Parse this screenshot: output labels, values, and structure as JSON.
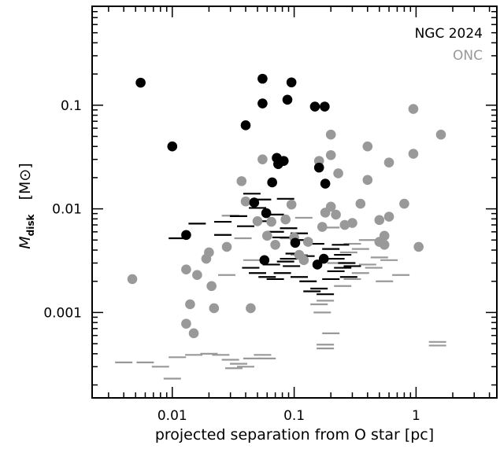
{
  "chart_data": {
    "type": "scatter",
    "xlabel": "projected separation from O star [pc]",
    "ylabel_main": "M",
    "ylabel_sub": "disk",
    "ylabel_unit": "[M⊙]",
    "xscale": "log",
    "yscale": "log",
    "xlim": [
      0.0022,
      4.6
    ],
    "ylim": [
      0.00015,
      0.9
    ],
    "xticks": [
      {
        "value": 0.01,
        "label": "0.01"
      },
      {
        "value": 0.1,
        "label": "0.1"
      },
      {
        "value": 1,
        "label": "1"
      }
    ],
    "yticks": [
      {
        "value": 0.001,
        "label": "0.001"
      },
      {
        "value": 0.01,
        "label": "0.01"
      },
      {
        "value": 0.1,
        "label": "0.1"
      }
    ],
    "legend": [
      {
        "name": "NGC 2024",
        "color": "#000000"
      },
      {
        "name": "ONC",
        "color": "#999999"
      }
    ],
    "legend_position": "top-right",
    "grid": false,
    "series": [
      {
        "name": "NGC 2024",
        "color": "#000000",
        "detections": [
          [
            0.0055,
            0.165
          ],
          [
            0.01,
            0.04
          ],
          [
            0.013,
            0.0056
          ],
          [
            0.055,
            0.18
          ],
          [
            0.055,
            0.104
          ],
          [
            0.088,
            0.113
          ],
          [
            0.095,
            0.166
          ],
          [
            0.04,
            0.064
          ],
          [
            0.148,
            0.097
          ],
          [
            0.178,
            0.097
          ],
          [
            0.072,
            0.031
          ],
          [
            0.074,
            0.027
          ],
          [
            0.082,
            0.029
          ],
          [
            0.16,
            0.025
          ],
          [
            0.066,
            0.018
          ],
          [
            0.18,
            0.0175
          ],
          [
            0.047,
            0.0115
          ],
          [
            0.059,
            0.0091
          ],
          [
            0.102,
            0.0047
          ],
          [
            0.057,
            0.0032
          ],
          [
            0.175,
            0.0033
          ],
          [
            0.155,
            0.0029
          ]
        ],
        "upper_limits": [
          [
            0.011,
            0.0052
          ],
          [
            0.016,
            0.0072
          ],
          [
            0.026,
            0.0075
          ],
          [
            0.026,
            0.0056
          ],
          [
            0.035,
            0.0085
          ],
          [
            0.04,
            0.0068
          ],
          [
            0.045,
            0.014
          ],
          [
            0.05,
            0.0102
          ],
          [
            0.055,
            0.0123
          ],
          [
            0.06,
            0.0076
          ],
          [
            0.07,
            0.006
          ],
          [
            0.085,
            0.0125
          ],
          [
            0.07,
            0.0088
          ],
          [
            0.078,
            0.0053
          ],
          [
            0.09,
            0.0065
          ],
          [
            0.11,
            0.0058
          ],
          [
            0.12,
            0.005
          ],
          [
            0.15,
            0.0046
          ],
          [
            0.2,
            0.0041
          ],
          [
            0.25,
            0.0036
          ],
          [
            0.044,
            0.0027
          ],
          [
            0.05,
            0.0024
          ],
          [
            0.06,
            0.0022
          ],
          [
            0.07,
            0.0021
          ],
          [
            0.08,
            0.0024
          ],
          [
            0.095,
            0.0028
          ],
          [
            0.11,
            0.0022
          ],
          [
            0.13,
            0.002
          ],
          [
            0.14,
            0.0016
          ],
          [
            0.16,
            0.0017
          ],
          [
            0.18,
            0.0015
          ],
          [
            0.2,
            0.0021
          ],
          [
            0.22,
            0.0025
          ],
          [
            0.25,
            0.0027
          ],
          [
            0.28,
            0.0022
          ],
          [
            0.1,
            0.0037
          ],
          [
            0.09,
            0.0033
          ],
          [
            0.125,
            0.0035
          ],
          [
            0.065,
            0.0029
          ],
          [
            0.085,
            0.0031
          ],
          [
            0.22,
            0.0033
          ],
          [
            0.27,
            0.003
          ],
          [
            0.24,
            0.0045
          ],
          [
            0.3,
            0.0028
          ]
        ]
      },
      {
        "name": "ONC",
        "color": "#999999",
        "detections": [
          [
            0.0047,
            0.0021
          ],
          [
            0.013,
            0.0026
          ],
          [
            0.014,
            0.0012
          ],
          [
            0.015,
            0.00063
          ],
          [
            0.016,
            0.0023
          ],
          [
            0.013,
            0.00078
          ],
          [
            0.019,
            0.0033
          ],
          [
            0.02,
            0.0038
          ],
          [
            0.021,
            0.0018
          ],
          [
            0.022,
            0.0011
          ],
          [
            0.028,
            0.0043
          ],
          [
            0.037,
            0.0185
          ],
          [
            0.04,
            0.0118
          ],
          [
            0.044,
            0.0011
          ],
          [
            0.05,
            0.0076
          ],
          [
            0.055,
            0.03
          ],
          [
            0.06,
            0.0055
          ],
          [
            0.065,
            0.0075
          ],
          [
            0.07,
            0.0045
          ],
          [
            0.085,
            0.0079
          ],
          [
            0.095,
            0.011
          ],
          [
            0.1,
            0.0053
          ],
          [
            0.11,
            0.0036
          ],
          [
            0.12,
            0.0032
          ],
          [
            0.13,
            0.0048
          ],
          [
            0.16,
            0.029
          ],
          [
            0.17,
            0.0067
          ],
          [
            0.18,
            0.0092
          ],
          [
            0.2,
            0.052
          ],
          [
            0.2,
            0.033
          ],
          [
            0.2,
            0.0105
          ],
          [
            0.22,
            0.0088
          ],
          [
            0.23,
            0.022
          ],
          [
            0.26,
            0.007
          ],
          [
            0.3,
            0.0073
          ],
          [
            0.35,
            0.0112
          ],
          [
            0.4,
            0.04
          ],
          [
            0.4,
            0.019
          ],
          [
            0.5,
            0.0078
          ],
          [
            0.5,
            0.0048
          ],
          [
            0.55,
            0.0055
          ],
          [
            0.55,
            0.0045
          ],
          [
            0.6,
            0.0084
          ],
          [
            0.6,
            0.028
          ],
          [
            0.8,
            0.0112
          ],
          [
            0.95,
            0.092
          ],
          [
            0.95,
            0.034
          ],
          [
            1.05,
            0.0043
          ],
          [
            1.6,
            0.052
          ]
        ],
        "upper_limits": [
          [
            0.004,
            0.00033
          ],
          [
            0.006,
            0.00033
          ],
          [
            0.008,
            0.0003
          ],
          [
            0.01,
            0.00023
          ],
          [
            0.011,
            0.00037
          ],
          [
            0.015,
            0.00039
          ],
          [
            0.02,
            0.0004
          ],
          [
            0.025,
            0.00039
          ],
          [
            0.03,
            0.00035
          ],
          [
            0.035,
            0.00032
          ],
          [
            0.04,
            0.0003
          ],
          [
            0.045,
            0.00036
          ],
          [
            0.055,
            0.00039
          ],
          [
            0.06,
            0.00036
          ],
          [
            0.032,
            0.00029
          ],
          [
            0.028,
            0.0023
          ],
          [
            0.03,
            0.0086
          ],
          [
            0.038,
            0.0052
          ],
          [
            0.045,
            0.0032
          ],
          [
            0.07,
            0.006
          ],
          [
            0.09,
            0.0052
          ],
          [
            0.12,
            0.0082
          ],
          [
            0.11,
            0.0036
          ],
          [
            0.2,
            0.0066
          ],
          [
            0.22,
            0.003
          ],
          [
            0.25,
            0.0018
          ],
          [
            0.3,
            0.0021
          ],
          [
            0.35,
            0.0024
          ],
          [
            0.4,
            0.0029
          ],
          [
            0.45,
            0.0027
          ],
          [
            0.5,
            0.0034
          ],
          [
            0.55,
            0.002
          ],
          [
            0.75,
            0.0023
          ],
          [
            0.18,
            0.0013
          ],
          [
            0.16,
            0.0012
          ],
          [
            0.17,
            0.001
          ],
          [
            0.2,
            0.00063
          ],
          [
            0.18,
            0.00049
          ],
          [
            0.18,
            0.00045
          ],
          [
            1.5,
            0.00052
          ],
          [
            1.5,
            0.00048
          ],
          [
            0.4,
            0.005
          ],
          [
            0.35,
            0.0041
          ],
          [
            0.28,
            0.0038
          ],
          [
            0.3,
            0.0046
          ],
          [
            0.6,
            0.0032
          ]
        ]
      }
    ]
  }
}
